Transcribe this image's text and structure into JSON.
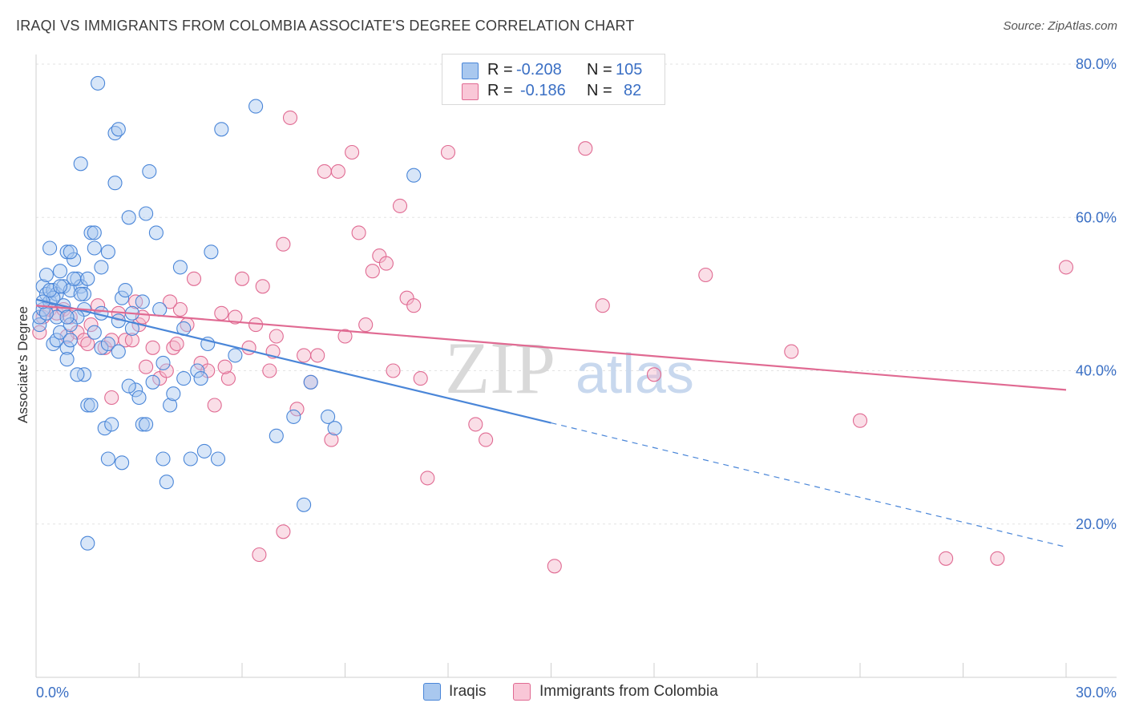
{
  "title": "IRAQI VS IMMIGRANTS FROM COLOMBIA ASSOCIATE'S DEGREE CORRELATION CHART",
  "source": "Source: ZipAtlas.com",
  "legend": {
    "rows": [
      {
        "r_label": "R =",
        "r_value": "-0.208",
        "n_label": "N =",
        "n_value": "105"
      },
      {
        "r_label": "R =",
        "r_value": "-0.186",
        "n_label": "N =",
        "n_value": "82"
      }
    ]
  },
  "bottom_legend": {
    "iraqis": "Iraqis",
    "colombia": "Immigrants from Colombia"
  },
  "colors": {
    "blue": "#4a86d8",
    "blue_fill": "#a9c8ef",
    "pink": "#e06a92",
    "pink_fill": "#f4b6ca",
    "axis_text": "#3a6fc4"
  },
  "chart_data": {
    "type": "scatter",
    "title": "IRAQI VS IMMIGRANTS FROM COLOMBIA ASSOCIATE'S DEGREE CORRELATION CHART",
    "xlabel": "",
    "ylabel": "Associate's Degree",
    "xlim": [
      0,
      30
    ],
    "ylim": [
      0,
      83
    ],
    "x_tick_labels": [
      "0.0%",
      "30.0%"
    ],
    "y_ticks": [
      20,
      40,
      60,
      80
    ],
    "y_tick_labels": [
      "20.0%",
      "40.0%",
      "60.0%",
      "80.0%"
    ],
    "grid": true,
    "legend_position": "top-center",
    "series": [
      {
        "name": "Iraqis",
        "color": "#4a86d8",
        "r": -0.208,
        "n": 105,
        "trend": {
          "x0": 0,
          "y0": 49.3,
          "x1": 15,
          "y1": 33.2,
          "dashed_to_x": 30,
          "dashed_to_y": 17.0
        },
        "points": [
          [
            0.1,
            46
          ],
          [
            0.1,
            47
          ],
          [
            0.2,
            48
          ],
          [
            0.2,
            51
          ],
          [
            0.3,
            52.5
          ],
          [
            0.3,
            50
          ],
          [
            0.4,
            56
          ],
          [
            0.4,
            49
          ],
          [
            0.5,
            50.5
          ],
          [
            0.5,
            43.5
          ],
          [
            0.6,
            50
          ],
          [
            0.6,
            44
          ],
          [
            0.7,
            53
          ],
          [
            0.7,
            45
          ],
          [
            0.8,
            51
          ],
          [
            0.9,
            55.5
          ],
          [
            0.9,
            43
          ],
          [
            1.0,
            50.5
          ],
          [
            1.0,
            44
          ],
          [
            1.1,
            54.5
          ],
          [
            1.2,
            52
          ],
          [
            1.3,
            51
          ],
          [
            1.4,
            50
          ],
          [
            1.5,
            52
          ],
          [
            1.6,
            58
          ],
          [
            1.7,
            56
          ],
          [
            1.8,
            77.5
          ],
          [
            1.9,
            53.5
          ],
          [
            2.1,
            55.5
          ],
          [
            2.3,
            71
          ],
          [
            2.4,
            71.5
          ],
          [
            2.5,
            49.5
          ],
          [
            2.6,
            50.5
          ],
          [
            2.7,
            60
          ],
          [
            2.8,
            45.5
          ],
          [
            2.9,
            37.5
          ],
          [
            3.0,
            36.5
          ],
          [
            3.1,
            33
          ],
          [
            3.2,
            60.5
          ],
          [
            3.3,
            66
          ],
          [
            3.5,
            58
          ],
          [
            3.6,
            48
          ],
          [
            3.7,
            41
          ],
          [
            3.8,
            25.5
          ],
          [
            3.9,
            35.5
          ],
          [
            4.0,
            37
          ],
          [
            4.2,
            53.5
          ],
          [
            4.3,
            45.5
          ],
          [
            4.5,
            28.5
          ],
          [
            4.7,
            40
          ],
          [
            4.8,
            39
          ],
          [
            4.9,
            29.5
          ],
          [
            5.0,
            43.5
          ],
          [
            5.1,
            55.5
          ],
          [
            5.3,
            28.5
          ],
          [
            5.4,
            71.5
          ],
          [
            5.8,
            42
          ],
          [
            6.4,
            74.5
          ],
          [
            7.0,
            31.5
          ],
          [
            7.5,
            34
          ],
          [
            7.8,
            22.5
          ],
          [
            8.0,
            38.5
          ],
          [
            8.5,
            34
          ],
          [
            8.7,
            32.5
          ],
          [
            11.0,
            65.5
          ],
          [
            1.3,
            67
          ],
          [
            2.3,
            64.5
          ],
          [
            1.7,
            45
          ],
          [
            1.9,
            43
          ],
          [
            2.1,
            43.5
          ],
          [
            2.0,
            32.5
          ],
          [
            2.2,
            33
          ],
          [
            2.1,
            28.5
          ],
          [
            2.5,
            28
          ],
          [
            1.5,
            35.5
          ],
          [
            1.5,
            17.5
          ],
          [
            1.4,
            48
          ],
          [
            1.2,
            47
          ],
          [
            1.0,
            46
          ],
          [
            0.8,
            48.5
          ],
          [
            0.6,
            47
          ],
          [
            0.5,
            49.5
          ],
          [
            0.4,
            50.5
          ],
          [
            0.3,
            47.5
          ],
          [
            0.2,
            49
          ],
          [
            0.9,
            47
          ],
          [
            1.1,
            52
          ],
          [
            1.3,
            50
          ],
          [
            1.4,
            39.5
          ],
          [
            1.6,
            35.5
          ],
          [
            2.4,
            42.5
          ],
          [
            2.7,
            38
          ],
          [
            3.2,
            33
          ],
          [
            3.4,
            38.5
          ],
          [
            3.7,
            28.5
          ],
          [
            4.3,
            39
          ],
          [
            1.0,
            55.5
          ],
          [
            1.9,
            47.5
          ],
          [
            2.8,
            47.5
          ],
          [
            0.7,
            51
          ],
          [
            1.2,
            39.5
          ],
          [
            2.4,
            46.5
          ],
          [
            3.1,
            49
          ],
          [
            1.7,
            58
          ],
          [
            0.9,
            41.5
          ]
        ]
      },
      {
        "name": "Immigrants from Colombia",
        "color": "#e06a92",
        "r": -0.186,
        "n": 82,
        "trend": {
          "x0": 0,
          "y0": 48.5,
          "x1": 30,
          "y1": 37.5
        },
        "points": [
          [
            0.1,
            45
          ],
          [
            0.2,
            47
          ],
          [
            0.4,
            48
          ],
          [
            0.6,
            47.5
          ],
          [
            0.8,
            48
          ],
          [
            1.0,
            47
          ],
          [
            1.2,
            45
          ],
          [
            1.4,
            44
          ],
          [
            1.6,
            46
          ],
          [
            1.8,
            48.5
          ],
          [
            2.0,
            43
          ],
          [
            2.2,
            44
          ],
          [
            2.4,
            47.5
          ],
          [
            2.6,
            44
          ],
          [
            2.8,
            44
          ],
          [
            3.0,
            46
          ],
          [
            3.2,
            40.5
          ],
          [
            3.4,
            43
          ],
          [
            3.6,
            39
          ],
          [
            3.8,
            40
          ],
          [
            4.0,
            43
          ],
          [
            4.2,
            48
          ],
          [
            4.4,
            46
          ],
          [
            4.6,
            52
          ],
          [
            4.8,
            41
          ],
          [
            5.0,
            40
          ],
          [
            5.2,
            35.5
          ],
          [
            5.4,
            47.5
          ],
          [
            5.6,
            39
          ],
          [
            5.8,
            47
          ],
          [
            6.0,
            52
          ],
          [
            6.2,
            43
          ],
          [
            6.4,
            46
          ],
          [
            6.6,
            51
          ],
          [
            6.8,
            40
          ],
          [
            7.0,
            44.5
          ],
          [
            7.2,
            56.5
          ],
          [
            7.4,
            73
          ],
          [
            7.6,
            35
          ],
          [
            7.8,
            42
          ],
          [
            8.0,
            38.5
          ],
          [
            8.2,
            42
          ],
          [
            8.4,
            66
          ],
          [
            8.6,
            31
          ],
          [
            8.8,
            66
          ],
          [
            9.0,
            44.5
          ],
          [
            9.2,
            68.5
          ],
          [
            9.4,
            58
          ],
          [
            9.6,
            46
          ],
          [
            9.8,
            53
          ],
          [
            10.0,
            55
          ],
          [
            10.2,
            54
          ],
          [
            10.4,
            40
          ],
          [
            10.6,
            61.5
          ],
          [
            10.8,
            49.5
          ],
          [
            11.0,
            48.5
          ],
          [
            11.2,
            39
          ],
          [
            11.4,
            26
          ],
          [
            12.0,
            68.5
          ],
          [
            12.8,
            33
          ],
          [
            13.1,
            31
          ],
          [
            15.1,
            14.5
          ],
          [
            16.0,
            69
          ],
          [
            16.5,
            48.5
          ],
          [
            18.0,
            39.5
          ],
          [
            19.5,
            52.5
          ],
          [
            22.0,
            42.5
          ],
          [
            24.0,
            33.5
          ],
          [
            26.5,
            15.5
          ],
          [
            28.0,
            15.5
          ],
          [
            30.0,
            53.5
          ],
          [
            7.2,
            19
          ],
          [
            6.5,
            16
          ],
          [
            5.5,
            40.5
          ],
          [
            4.1,
            43.5
          ],
          [
            3.1,
            47
          ],
          [
            2.2,
            36.5
          ],
          [
            1.5,
            43.5
          ],
          [
            0.9,
            44.5
          ],
          [
            6.9,
            42.5
          ],
          [
            2.9,
            49
          ],
          [
            3.9,
            49
          ]
        ]
      }
    ]
  }
}
